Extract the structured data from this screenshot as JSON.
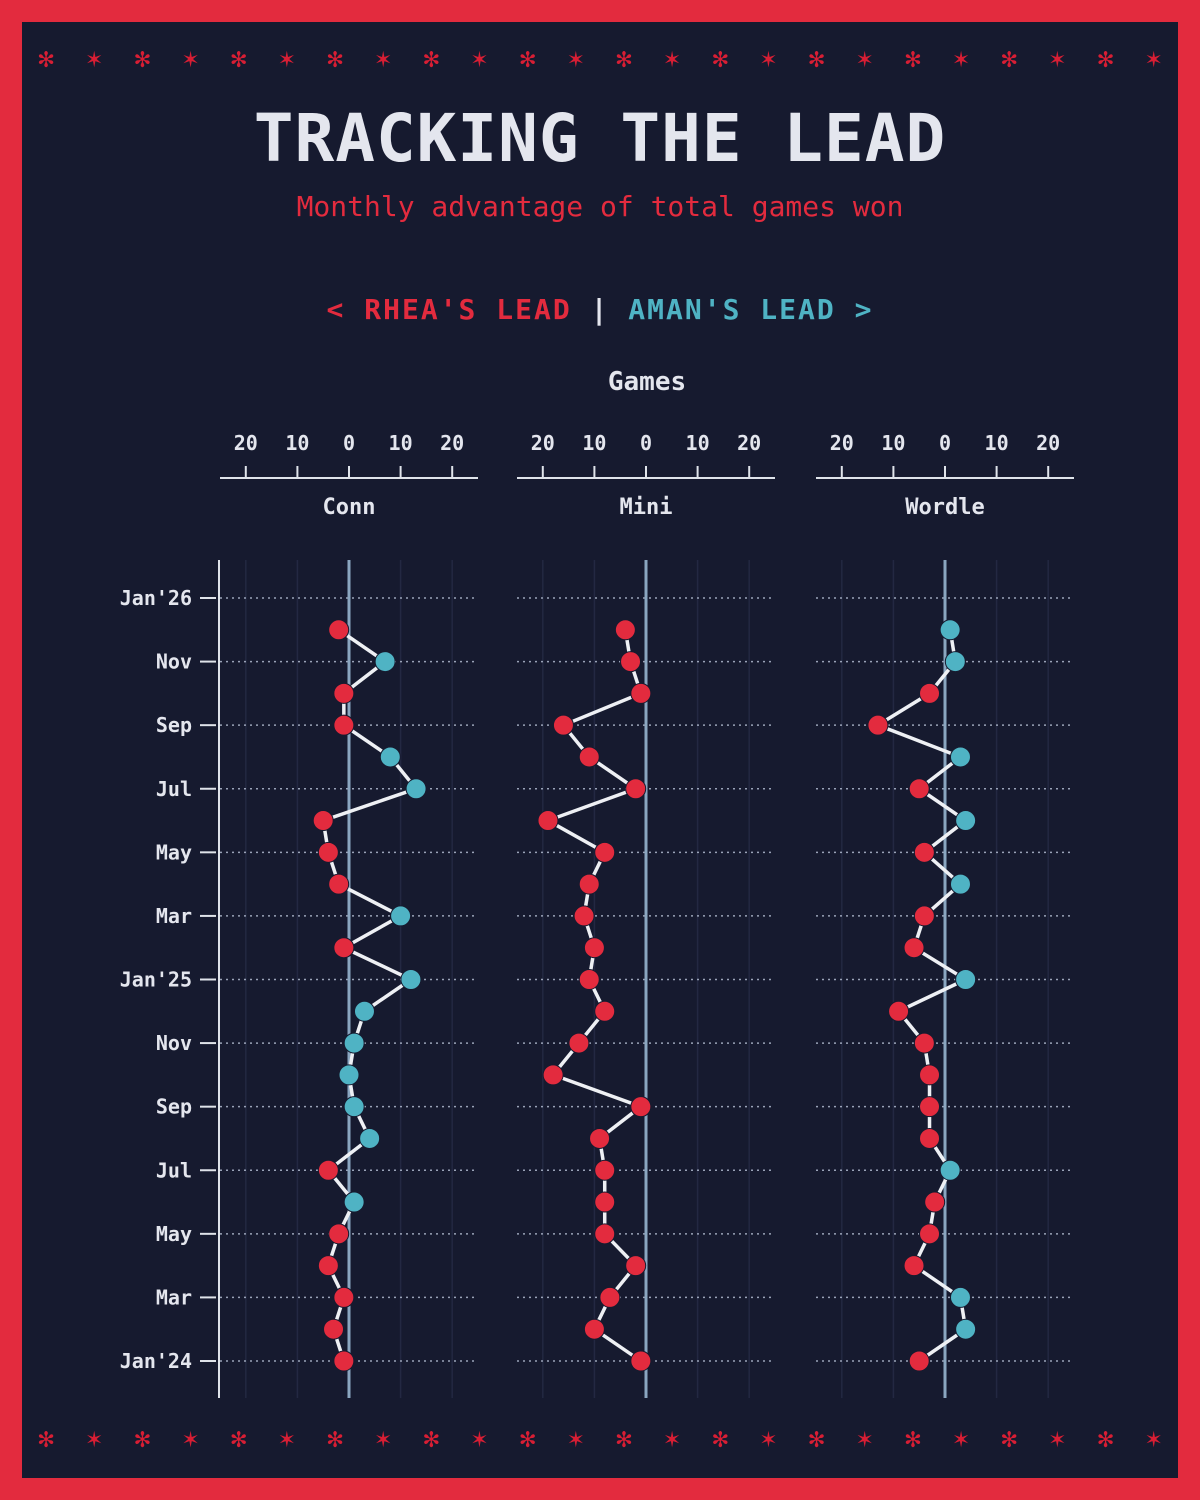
{
  "title": "TRACKING THE LEAD",
  "subtitle": "Monthly advantage of total games won",
  "legend": {
    "left": "< RHEA'S LEAD",
    "separator": "|",
    "right": "AMAN'S LEAD >"
  },
  "colors": {
    "rhea": "#e32b3e",
    "aman": "#4fb3c4",
    "background": "#161a2f",
    "frame": "#e32b3e",
    "zero_line": "#8aa6c0"
  },
  "chart_data": {
    "type": "line",
    "title": "TRACKING THE LEAD",
    "subtitle": "Monthly advantage of total games won",
    "xlabel": "Games",
    "xlim": [
      -25,
      25
    ],
    "x_ticks": [
      20,
      10,
      0,
      10,
      20
    ],
    "x_note": "negative = Rhea's lead (left), positive = Aman's lead (right)",
    "y_tick_labels": [
      "Jan'24",
      "Mar",
      "May",
      "Jul",
      "Sep",
      "Nov",
      "Jan'25",
      "Mar",
      "May",
      "Jul",
      "Sep",
      "Nov",
      "Jan'26"
    ],
    "months": [
      "2024-01",
      "2024-02",
      "2024-03",
      "2024-04",
      "2024-05",
      "2024-06",
      "2024-07",
      "2024-08",
      "2024-09",
      "2024-10",
      "2024-11",
      "2024-12",
      "2025-01",
      "2025-02",
      "2025-03",
      "2025-04",
      "2025-05",
      "2025-06",
      "2025-07",
      "2025-08",
      "2025-09",
      "2025-10",
      "2025-11",
      "2025-12"
    ],
    "grid": true,
    "panels": [
      {
        "name": "Conn",
        "values": [
          -1,
          -3,
          -1,
          -4,
          -2,
          1,
          -4,
          4,
          1,
          0,
          1,
          3,
          12,
          -1,
          10,
          -2,
          -4,
          -5,
          13,
          8,
          -1,
          -1,
          7,
          -2
        ]
      },
      {
        "name": "Mini",
        "values": [
          -1,
          -10,
          -7,
          -2,
          -8,
          -8,
          -8,
          -9,
          -1,
          -18,
          -13,
          -8,
          -11,
          -10,
          -12,
          -11,
          -8,
          -19,
          -2,
          -11,
          -16,
          -1,
          -3,
          -4
        ]
      },
      {
        "name": "Wordle",
        "values": [
          -5,
          4,
          3,
          -6,
          -3,
          -2,
          1,
          -3,
          -3,
          -3,
          -4,
          -9,
          4,
          -6,
          -4,
          3,
          -4,
          4,
          -5,
          3,
          -13,
          -3,
          2,
          1
        ]
      }
    ]
  }
}
